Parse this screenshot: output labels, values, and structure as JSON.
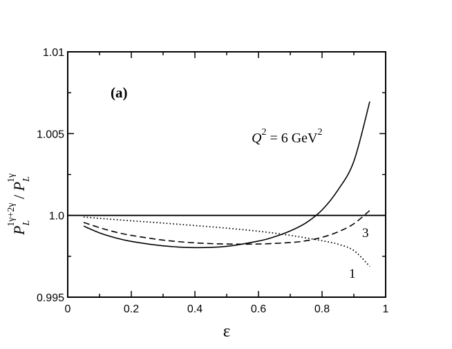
{
  "chart_data": {
    "type": "line",
    "panel_label": "(a)",
    "annotation": {
      "Q": "Q",
      "exp": "2",
      "mid": " = 6 GeV",
      "exp2": "2"
    },
    "xlabel": "ε",
    "ylabel": {
      "P1": "P",
      "L1": "L",
      "sup1": "1γ+2γ",
      "slash": " / ",
      "P2": "P",
      "L2": "L",
      "sup2": "1γ"
    },
    "xlim": [
      0,
      1
    ],
    "ylim": [
      0.995,
      1.01
    ],
    "x_ticks": [
      "0",
      "0.2",
      "0.4",
      "0.6",
      "0.8",
      "1"
    ],
    "y_ticks": [
      "0.995",
      "1.0",
      "1.005",
      "1.01"
    ],
    "series": [
      {
        "name": "1",
        "style": "dotted",
        "x": [
          0.05,
          0.1,
          0.2,
          0.3,
          0.4,
          0.5,
          0.6,
          0.7,
          0.8,
          0.85,
          0.9,
          0.95
        ],
        "y": [
          0.9999,
          0.99982,
          0.99967,
          0.99953,
          0.99938,
          0.99922,
          0.99903,
          0.99878,
          0.99845,
          0.99824,
          0.99785,
          0.99688
        ]
      },
      {
        "name": "3",
        "style": "dashed",
        "x": [
          0.05,
          0.1,
          0.15,
          0.2,
          0.3,
          0.4,
          0.5,
          0.6,
          0.7,
          0.75,
          0.8,
          0.85,
          0.9,
          0.95
        ],
        "y": [
          0.99957,
          0.99925,
          0.99898,
          0.99878,
          0.99849,
          0.99832,
          0.99825,
          0.99825,
          0.99834,
          0.99845,
          0.99866,
          0.99899,
          0.99949,
          1.0003
        ]
      },
      {
        "name": "",
        "style": "solid",
        "x": [
          0.05,
          0.1,
          0.15,
          0.2,
          0.3,
          0.4,
          0.5,
          0.6,
          0.65,
          0.7,
          0.75,
          0.8,
          0.85,
          0.9,
          0.95
        ],
        "y": [
          0.99935,
          0.99893,
          0.99863,
          0.99841,
          0.99814,
          0.99803,
          0.99811,
          0.99843,
          0.99869,
          0.99905,
          0.99955,
          1.00033,
          1.00155,
          1.00331,
          1.00696
        ]
      },
      {
        "name": "",
        "style": "reference",
        "x": [
          0,
          1
        ],
        "y": [
          1.0,
          1.0
        ]
      }
    ]
  }
}
